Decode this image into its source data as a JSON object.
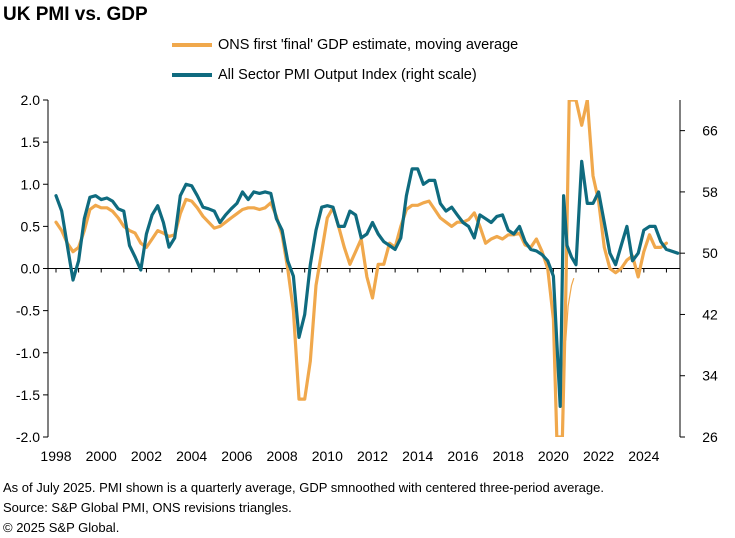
{
  "title": "UK PMI vs. GDP",
  "legend": [
    {
      "label": "ONS first 'final' GDP estimate, moving average",
      "color": "#f0a84c"
    },
    {
      "label": "All Sector PMI Output Index (right scale)",
      "color": "#0f6b7f"
    }
  ],
  "footer": {
    "line1": "As of July 2025. PMI shown is a quarterly average, GDP smnoothed with centered three-period average.",
    "line2": "Source: S&P Global PMI, ONS revisions triangles.",
    "line3": "© 2025 S&P Global."
  },
  "chart_data": {
    "type": "line",
    "x_ticks": [
      "1998",
      "2000",
      "2002",
      "2004",
      "2006",
      "2008",
      "2010",
      "2012",
      "2014",
      "2016",
      "2018",
      "2020",
      "2022",
      "2024"
    ],
    "y_left": {
      "min": -2.0,
      "max": 2.0,
      "ticks": [
        "2.0",
        "1.5",
        "1.0",
        "0.5",
        "0.0",
        "-0.5",
        "-1.0",
        "-1.5",
        "-2.0"
      ]
    },
    "y_right": {
      "min": 26,
      "max": 70,
      "ticks": [
        "66",
        "58",
        "50",
        "42",
        "34",
        "26"
      ]
    },
    "series": [
      {
        "name": "ONS first 'final' GDP estimate, moving average",
        "axis": "left",
        "color": "#f0a84c",
        "points": [
          [
            1998.0,
            0.55
          ],
          [
            1998.25,
            0.45
          ],
          [
            1998.5,
            0.3
          ],
          [
            1998.75,
            0.2
          ],
          [
            1999.0,
            0.25
          ],
          [
            1999.25,
            0.45
          ],
          [
            1999.5,
            0.7
          ],
          [
            1999.75,
            0.75
          ],
          [
            2000.0,
            0.72
          ],
          [
            2000.25,
            0.72
          ],
          [
            2000.5,
            0.68
          ],
          [
            2000.75,
            0.6
          ],
          [
            2001.0,
            0.5
          ],
          [
            2001.25,
            0.45
          ],
          [
            2001.5,
            0.42
          ],
          [
            2001.75,
            0.3
          ],
          [
            2002.0,
            0.25
          ],
          [
            2002.25,
            0.35
          ],
          [
            2002.5,
            0.45
          ],
          [
            2002.75,
            0.42
          ],
          [
            2003.0,
            0.38
          ],
          [
            2003.25,
            0.4
          ],
          [
            2003.5,
            0.65
          ],
          [
            2003.75,
            0.82
          ],
          [
            2004.0,
            0.8
          ],
          [
            2004.25,
            0.72
          ],
          [
            2004.5,
            0.62
          ],
          [
            2004.75,
            0.55
          ],
          [
            2005.0,
            0.48
          ],
          [
            2005.25,
            0.5
          ],
          [
            2005.5,
            0.55
          ],
          [
            2005.75,
            0.6
          ],
          [
            2006.0,
            0.65
          ],
          [
            2006.25,
            0.7
          ],
          [
            2006.5,
            0.72
          ],
          [
            2006.75,
            0.72
          ],
          [
            2007.0,
            0.7
          ],
          [
            2007.25,
            0.72
          ],
          [
            2007.5,
            0.78
          ],
          [
            2007.75,
            0.62
          ],
          [
            2008.0,
            0.4
          ],
          [
            2008.25,
            0.0
          ],
          [
            2008.5,
            -0.5
          ],
          [
            2008.75,
            -1.55
          ],
          [
            2009.0,
            -1.55
          ],
          [
            2009.25,
            -1.1
          ],
          [
            2009.5,
            -0.2
          ],
          [
            2009.75,
            0.2
          ],
          [
            2010.0,
            0.6
          ],
          [
            2010.25,
            0.72
          ],
          [
            2010.5,
            0.5
          ],
          [
            2010.75,
            0.25
          ],
          [
            2011.0,
            0.05
          ],
          [
            2011.25,
            0.2
          ],
          [
            2011.5,
            0.35
          ],
          [
            2011.75,
            -0.1
          ],
          [
            2012.0,
            -0.35
          ],
          [
            2012.25,
            0.05
          ],
          [
            2012.5,
            0.05
          ],
          [
            2012.75,
            0.3
          ],
          [
            2013.0,
            0.25
          ],
          [
            2013.25,
            0.5
          ],
          [
            2013.5,
            0.7
          ],
          [
            2013.75,
            0.75
          ],
          [
            2014.0,
            0.75
          ],
          [
            2014.25,
            0.78
          ],
          [
            2014.5,
            0.8
          ],
          [
            2014.75,
            0.7
          ],
          [
            2015.0,
            0.6
          ],
          [
            2015.25,
            0.55
          ],
          [
            2015.5,
            0.5
          ],
          [
            2015.75,
            0.55
          ],
          [
            2016.0,
            0.55
          ],
          [
            2016.25,
            0.58
          ],
          [
            2016.5,
            0.66
          ],
          [
            2016.75,
            0.5
          ],
          [
            2017.0,
            0.3
          ],
          [
            2017.25,
            0.35
          ],
          [
            2017.5,
            0.38
          ],
          [
            2017.75,
            0.35
          ],
          [
            2018.0,
            0.4
          ],
          [
            2018.25,
            0.4
          ],
          [
            2018.5,
            0.42
          ],
          [
            2018.75,
            0.28
          ],
          [
            2019.0,
            0.25
          ],
          [
            2019.25,
            0.35
          ],
          [
            2019.5,
            0.2
          ],
          [
            2019.75,
            0.0
          ],
          [
            2020.0,
            -0.6
          ],
          [
            2020.15,
            -2.0
          ],
          [
            2020.4,
            -2.0
          ],
          [
            2020.55,
            -0.3
          ],
          [
            2020.7,
            2.0
          ],
          [
            2021.0,
            2.0
          ],
          [
            2021.25,
            1.7
          ],
          [
            2021.5,
            2.0
          ],
          [
            2021.75,
            1.1
          ],
          [
            2022.0,
            0.8
          ],
          [
            2022.25,
            0.25
          ],
          [
            2022.5,
            0.0
          ],
          [
            2022.75,
            -0.05
          ],
          [
            2023.0,
            0.0
          ],
          [
            2023.25,
            0.1
          ],
          [
            2023.5,
            0.15
          ],
          [
            2023.75,
            -0.1
          ],
          [
            2024.0,
            0.2
          ],
          [
            2024.25,
            0.4
          ],
          [
            2024.5,
            0.25
          ],
          [
            2024.75,
            0.25
          ],
          [
            2025.0,
            0.3
          ]
        ]
      },
      {
        "name": "All Sector PMI Output Index (right scale)",
        "axis": "right",
        "color": "#0f6b7f",
        "points": [
          [
            1998.0,
            57.5
          ],
          [
            1998.25,
            55.5
          ],
          [
            1998.5,
            51.0
          ],
          [
            1998.75,
            46.5
          ],
          [
            1999.0,
            49.0
          ],
          [
            1999.25,
            54.5
          ],
          [
            1999.5,
            57.3
          ],
          [
            1999.75,
            57.5
          ],
          [
            2000.0,
            57.0
          ],
          [
            2000.25,
            57.2
          ],
          [
            2000.5,
            56.8
          ],
          [
            2000.75,
            55.8
          ],
          [
            2001.0,
            55.5
          ],
          [
            2001.25,
            51.0
          ],
          [
            2001.5,
            49.5
          ],
          [
            2001.75,
            47.8
          ],
          [
            2002.0,
            52.5
          ],
          [
            2002.25,
            55.0
          ],
          [
            2002.5,
            56.2
          ],
          [
            2002.75,
            54.0
          ],
          [
            2003.0,
            50.8
          ],
          [
            2003.25,
            52.0
          ],
          [
            2003.5,
            57.5
          ],
          [
            2003.75,
            59.0
          ],
          [
            2004.0,
            58.8
          ],
          [
            2004.25,
            57.5
          ],
          [
            2004.5,
            56.0
          ],
          [
            2004.75,
            55.8
          ],
          [
            2005.0,
            55.5
          ],
          [
            2005.25,
            54.0
          ],
          [
            2005.5,
            55.0
          ],
          [
            2005.75,
            55.8
          ],
          [
            2006.0,
            56.5
          ],
          [
            2006.25,
            58.0
          ],
          [
            2006.5,
            57.0
          ],
          [
            2006.75,
            58.0
          ],
          [
            2007.0,
            57.8
          ],
          [
            2007.25,
            58.0
          ],
          [
            2007.5,
            57.8
          ],
          [
            2007.75,
            54.5
          ],
          [
            2008.0,
            53.0
          ],
          [
            2008.25,
            49.0
          ],
          [
            2008.5,
            47.0
          ],
          [
            2008.75,
            39.0
          ],
          [
            2009.0,
            42.0
          ],
          [
            2009.25,
            48.5
          ],
          [
            2009.5,
            53.0
          ],
          [
            2009.75,
            56.0
          ],
          [
            2010.0,
            56.2
          ],
          [
            2010.25,
            56.0
          ],
          [
            2010.5,
            53.5
          ],
          [
            2010.75,
            53.5
          ],
          [
            2011.0,
            55.5
          ],
          [
            2011.25,
            55.0
          ],
          [
            2011.5,
            52.0
          ],
          [
            2011.75,
            52.5
          ],
          [
            2012.0,
            54.0
          ],
          [
            2012.25,
            52.5
          ],
          [
            2012.5,
            51.5
          ],
          [
            2012.75,
            51.0
          ],
          [
            2013.0,
            50.5
          ],
          [
            2013.25,
            52.0
          ],
          [
            2013.5,
            57.5
          ],
          [
            2013.75,
            61.0
          ],
          [
            2014.0,
            61.0
          ],
          [
            2014.25,
            59.0
          ],
          [
            2014.5,
            59.5
          ],
          [
            2014.75,
            59.5
          ],
          [
            2015.0,
            56.5
          ],
          [
            2015.25,
            55.5
          ],
          [
            2015.5,
            56.0
          ],
          [
            2015.75,
            55.0
          ],
          [
            2016.0,
            54.0
          ],
          [
            2016.25,
            53.5
          ],
          [
            2016.5,
            52.0
          ],
          [
            2016.75,
            55.0
          ],
          [
            2017.0,
            54.5
          ],
          [
            2017.25,
            54.0
          ],
          [
            2017.5,
            54.8
          ],
          [
            2017.75,
            55.0
          ],
          [
            2018.0,
            53.0
          ],
          [
            2018.25,
            52.5
          ],
          [
            2018.5,
            53.5
          ],
          [
            2018.75,
            51.5
          ],
          [
            2019.0,
            50.5
          ],
          [
            2019.25,
            50.3
          ],
          [
            2019.5,
            49.8
          ],
          [
            2019.75,
            49.0
          ],
          [
            2020.0,
            47.0
          ],
          [
            2020.15,
            38.5
          ],
          [
            2020.3,
            30.0
          ],
          [
            2020.45,
            57.5
          ],
          [
            2020.6,
            51.0
          ],
          [
            2020.8,
            49.5
          ],
          [
            2021.0,
            48.5
          ],
          [
            2021.25,
            62.0
          ],
          [
            2021.5,
            56.5
          ],
          [
            2021.75,
            56.5
          ],
          [
            2022.0,
            58.0
          ],
          [
            2022.25,
            54.0
          ],
          [
            2022.5,
            50.0
          ],
          [
            2022.75,
            48.5
          ],
          [
            2023.0,
            51.0
          ],
          [
            2023.25,
            53.5
          ],
          [
            2023.5,
            49.0
          ],
          [
            2023.75,
            50.0
          ],
          [
            2024.0,
            53.0
          ],
          [
            2024.25,
            53.5
          ],
          [
            2024.5,
            53.5
          ],
          [
            2024.75,
            51.5
          ],
          [
            2025.0,
            50.5
          ],
          [
            2025.5,
            50.0
          ]
        ]
      },
      {
        "name": "",
        "axis": "left",
        "color": "#f0a84c",
        "thin": true,
        "points": [
          [
            2020.55,
            -0.85
          ],
          [
            2020.65,
            -0.45
          ],
          [
            2020.8,
            -0.2
          ],
          [
            2020.9,
            -0.12
          ]
        ]
      }
    ]
  }
}
